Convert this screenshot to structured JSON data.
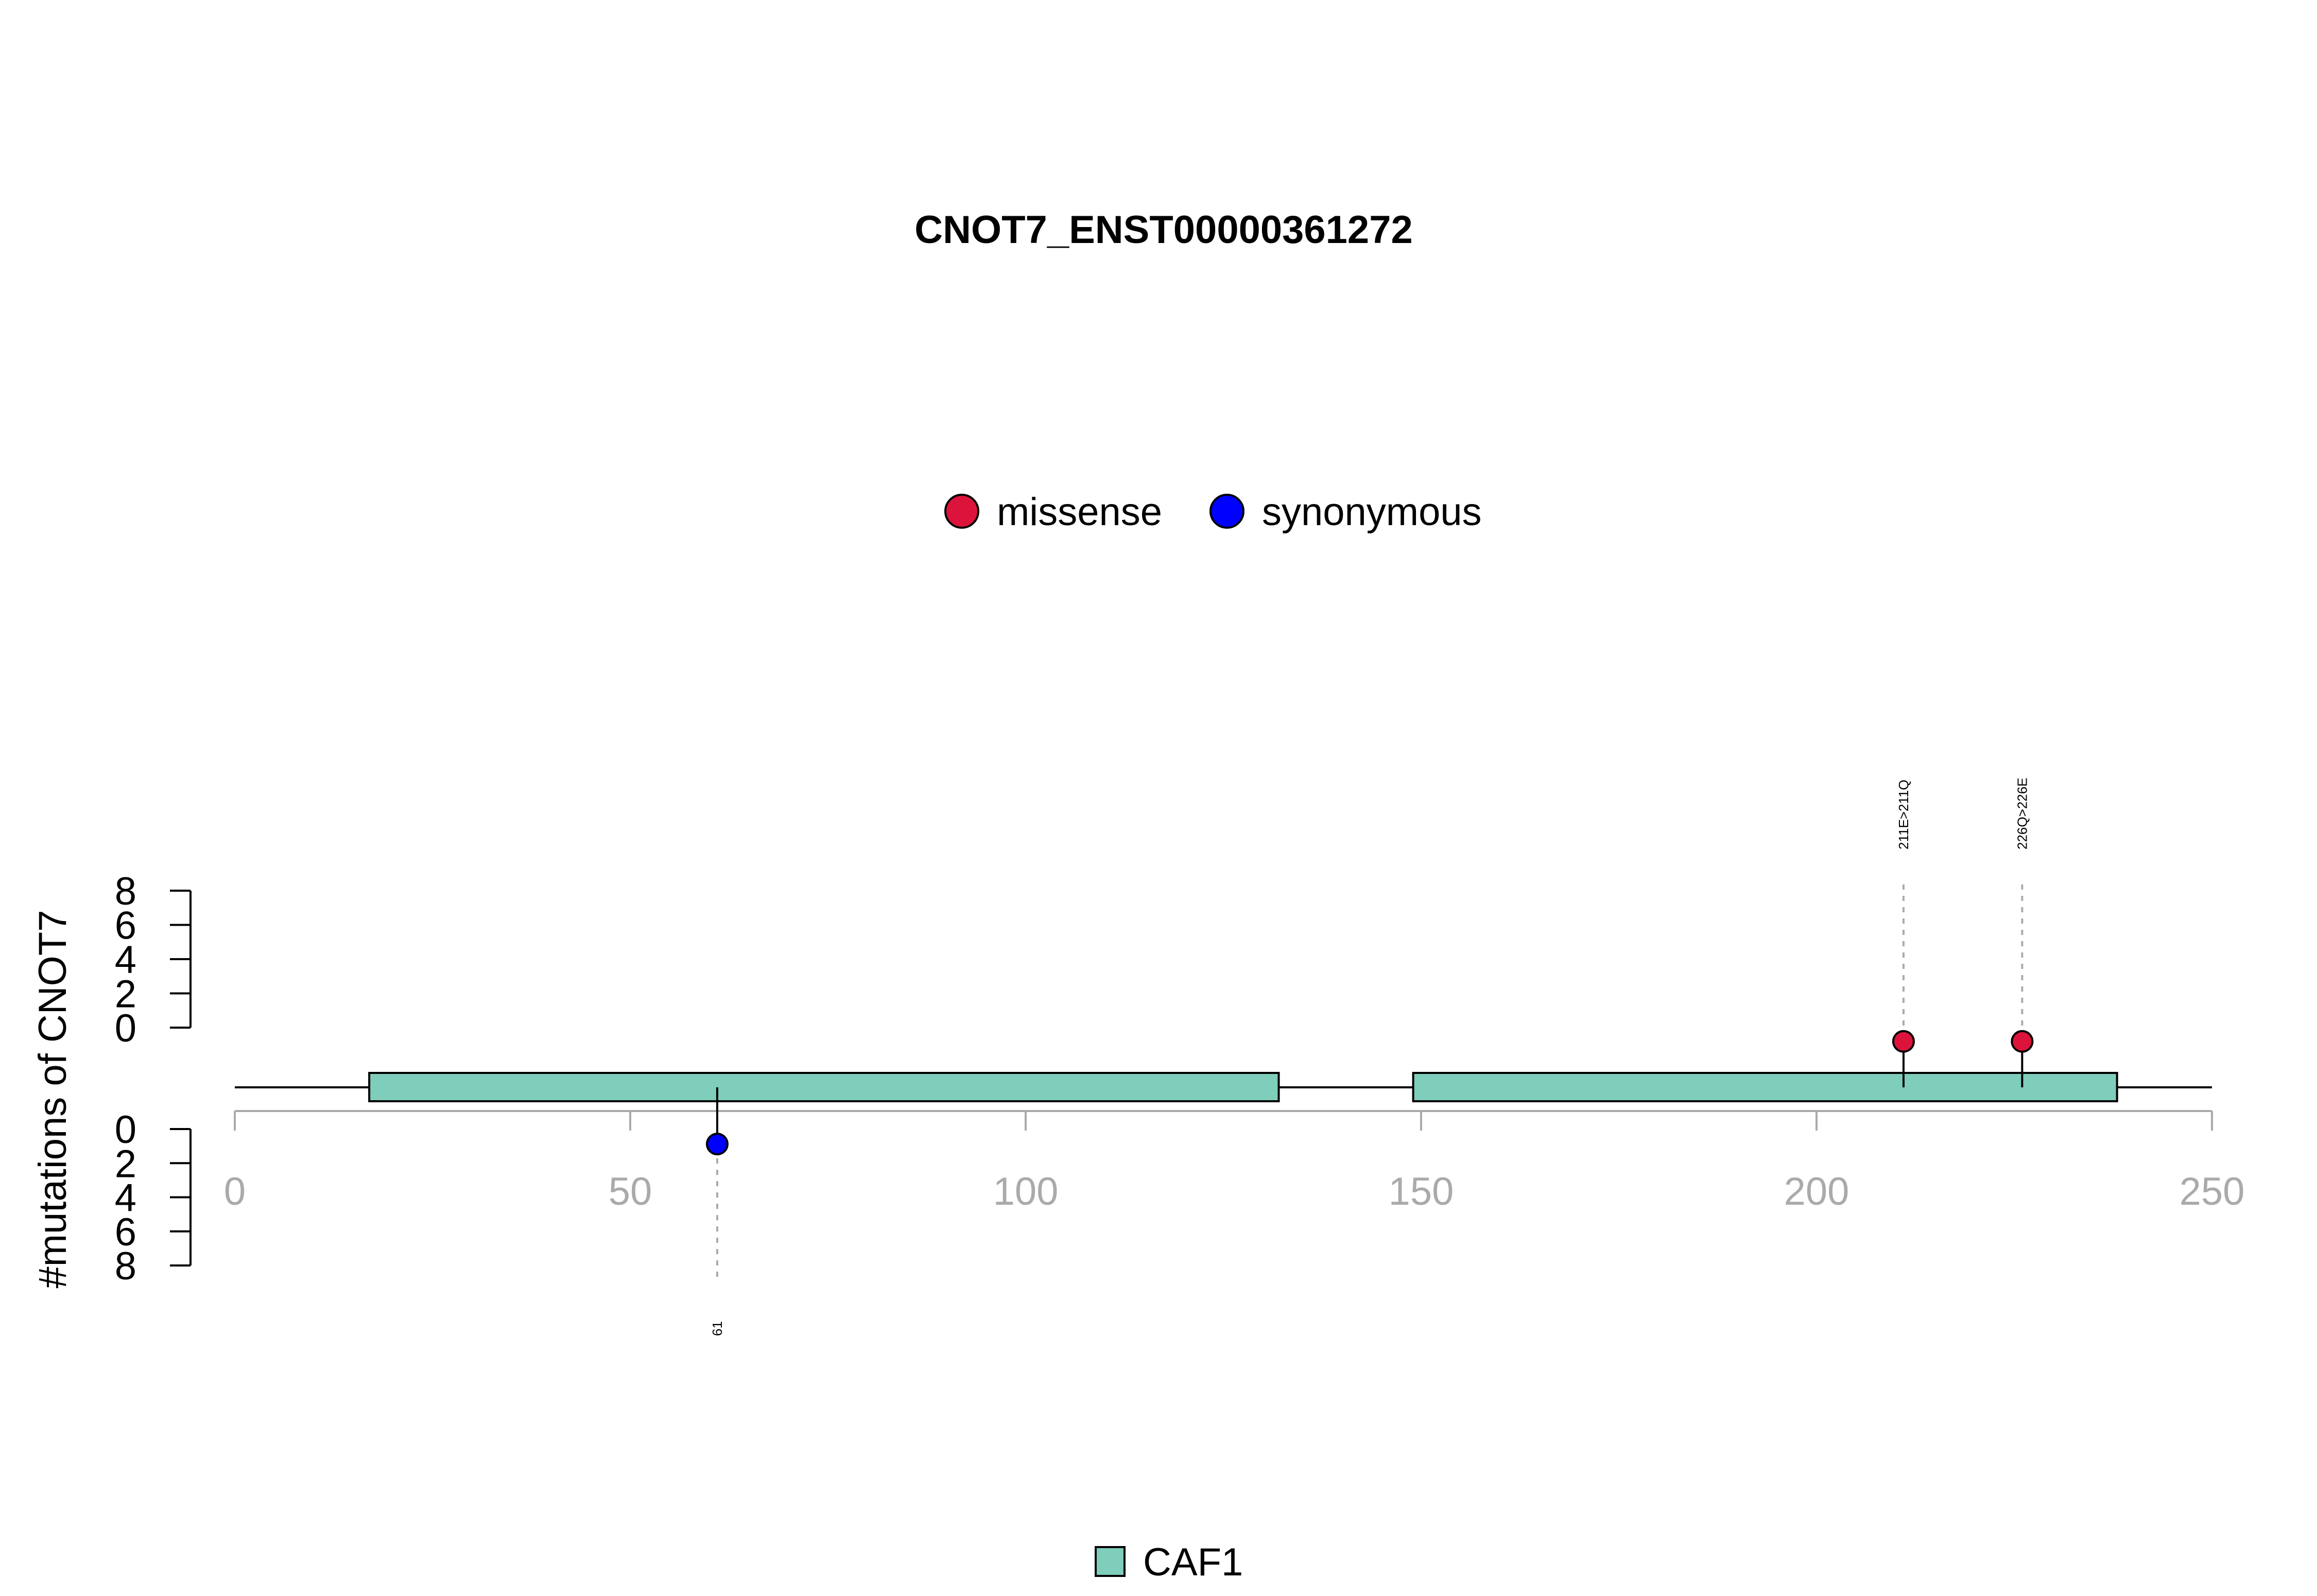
{
  "chart_data": {
    "type": "lollipop",
    "title": "CNOT7_ENST00000361272",
    "ylabel": "#mutations of CNOT7",
    "x_ticks": [
      "0",
      "50",
      "100",
      "150",
      "200",
      "250"
    ],
    "x_tick_values": [
      0,
      50,
      100,
      150,
      200,
      250
    ],
    "xlim": [
      0,
      250
    ],
    "y_ticks": [
      "0",
      "2",
      "4",
      "6",
      "8"
    ],
    "y_tick_values": [
      0,
      2,
      4,
      6,
      8
    ],
    "ylim": [
      0,
      8
    ],
    "legend": [
      {
        "label": "missense",
        "color": "#DC143C"
      },
      {
        "label": "synonymous",
        "color": "#0000FF"
      }
    ],
    "domains": [
      {
        "name": "CAF1",
        "start": 17,
        "end": 132,
        "color": "#7FCDBB"
      },
      {
        "name": "CAF1",
        "start": 149,
        "end": 238,
        "color": "#7FCDBB"
      }
    ],
    "domain_legend": [
      {
        "label": "CAF1",
        "color": "#7FCDBB"
      }
    ],
    "mutations": [
      {
        "position": 211,
        "label": "211E>211Q",
        "type": "missense",
        "side": "top",
        "count": 1
      },
      {
        "position": 226,
        "label": "226Q>226E",
        "type": "missense",
        "side": "top",
        "count": 1
      },
      {
        "position": 61,
        "label": "61",
        "type": "synonymous",
        "side": "bottom",
        "count": 1
      }
    ]
  }
}
